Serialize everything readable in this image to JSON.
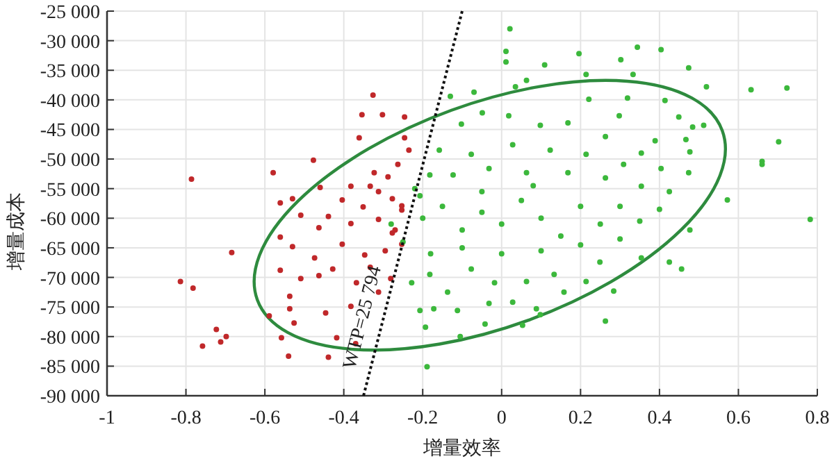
{
  "chart_data": {
    "type": "scatter",
    "xlabel": "增量效率",
    "ylabel": "增量成本",
    "xlim": [
      -1,
      0.8
    ],
    "xticks": [
      -1,
      -0.8,
      -0.6,
      -0.4,
      -0.2,
      0,
      0.2,
      0.4,
      0.6,
      0.8
    ],
    "ylim": [
      -90000,
      -25000
    ],
    "yticks": [
      {
        "value": -90000,
        "label": "-90 000"
      },
      {
        "value": -85000,
        "label": "-85 000"
      },
      {
        "value": -80000,
        "label": "-80 000"
      },
      {
        "value": -75000,
        "label": "-75 000"
      },
      {
        "value": -70000,
        "label": "-70 000"
      },
      {
        "value": -65000,
        "label": "-65 000"
      },
      {
        "value": -60000,
        "label": "-60 000"
      },
      {
        "value": -55000,
        "label": "-55 000"
      },
      {
        "value": -50000,
        "label": "-50 000"
      },
      {
        "value": -45000,
        "label": "-45 000"
      },
      {
        "value": -40000,
        "label": "-40 000"
      },
      {
        "value": -35000,
        "label": "-35 000"
      },
      {
        "value": -30000,
        "label": "-30 000"
      },
      {
        "value": -25000,
        "label": "-25 000"
      }
    ],
    "grid": true,
    "marker": "circle",
    "series": [
      {
        "type": "scatter",
        "color": "#c0282a",
        "x": [
          -0.786,
          -0.579,
          -0.477,
          -0.561,
          -0.53,
          -0.46,
          -0.326,
          -0.354,
          -0.302,
          -0.246,
          -0.361,
          -0.246,
          -0.323,
          -0.288,
          -0.382,
          -0.333,
          -0.263,
          -0.235,
          -0.312,
          -0.277,
          -0.404,
          -0.439,
          -0.509,
          -0.351,
          -0.253,
          -0.312,
          -0.382,
          -0.463,
          -0.684,
          -0.814,
          -0.782,
          -0.723,
          -0.758,
          -0.712,
          -0.698,
          -0.589,
          -0.561,
          -0.53,
          -0.561,
          -0.537,
          -0.537,
          -0.526,
          -0.558,
          -0.54,
          -0.439,
          -0.446,
          -0.509,
          -0.474,
          -0.428,
          -0.404,
          -0.368,
          -0.347,
          -0.382,
          -0.463,
          -0.418,
          -0.295,
          -0.333,
          -0.312,
          -0.37,
          -0.277,
          -0.253,
          -0.281,
          -0.253,
          -0.27
        ],
        "values": [
          -53400,
          -52300,
          -50200,
          -57400,
          -56700,
          -54800,
          -39200,
          -42500,
          -42500,
          -42900,
          -46400,
          -46400,
          -52300,
          -53000,
          -54600,
          -54600,
          -50900,
          -48500,
          -55500,
          -56700,
          -56900,
          -59700,
          -59500,
          -58100,
          -57900,
          -60200,
          -60900,
          -61600,
          -65800,
          -70700,
          -71800,
          -78800,
          -81600,
          -80900,
          -80000,
          -76500,
          -63200,
          -64800,
          -68800,
          -73200,
          -75300,
          -77700,
          -80200,
          -83300,
          -83500,
          -76000,
          -70200,
          -66700,
          -68600,
          -64400,
          -70900,
          -66200,
          -74900,
          -69700,
          -80200,
          -65500,
          -68300,
          -72500,
          -81200,
          -62500,
          -64400,
          -70200,
          -58600,
          -62000
        ]
      },
      {
        "type": "scatter",
        "color": "#3cb83c",
        "x": [
          0.021,
          0.011,
          0.011,
          0.196,
          0.302,
          0.344,
          0.404,
          0.474,
          0.519,
          0.632,
          0.723,
          0.702,
          0.66,
          0.66,
          0.572,
          0.782,
          0.109,
          0.214,
          0.333,
          -0.07,
          -0.13,
          0.035,
          0.063,
          0.221,
          0.319,
          0.414,
          0.449,
          0.484,
          0.512,
          0.467,
          0.477,
          0.389,
          0.354,
          0.263,
          0.298,
          0.168,
          0.098,
          0.018,
          -0.049,
          -0.102,
          -0.158,
          -0.182,
          -0.077,
          0.028,
          0.123,
          0.214,
          0.309,
          0.404,
          0.474,
          0.425,
          0.354,
          0.263,
          0.168,
          0.063,
          -0.032,
          -0.123,
          -0.207,
          -0.189,
          -0.105,
          -0.042,
          0.053,
          0.263,
          0.284,
          0.214,
          0.158,
          0.098,
          0.088,
          0.028,
          -0.032,
          -0.112,
          -0.193,
          -0.207,
          -0.172,
          -0.137,
          -0.018,
          0.063,
          0.133,
          0.249,
          0.354,
          0.425,
          0.456,
          0.477,
          -0.077,
          -0.182,
          -0.228,
          -0.2,
          -0.15,
          -0.1,
          -0.05,
          0,
          0.05,
          0.1,
          0.15,
          0.2,
          0.25,
          -0.25,
          -0.18,
          -0.1,
          0,
          0.1,
          0.2,
          0.3,
          0.35,
          -0.22,
          -0.05,
          0.08,
          0.3,
          -0.28,
          0.4
        ],
        "values": [
          -28000,
          -31800,
          -33600,
          -32200,
          -33200,
          -31100,
          -31500,
          -34600,
          -37800,
          -38300,
          -38000,
          -47100,
          -50400,
          -50900,
          -56900,
          -60200,
          -34100,
          -35700,
          -35700,
          -38700,
          -39400,
          -37800,
          -36700,
          -39900,
          -39700,
          -40100,
          -42900,
          -44600,
          -44300,
          -46700,
          -48800,
          -46900,
          -49000,
          -46200,
          -42700,
          -43900,
          -44300,
          -42700,
          -42200,
          -44100,
          -48500,
          -52700,
          -49200,
          -47600,
          -48500,
          -49200,
          -50900,
          -51600,
          -52300,
          -55500,
          -54600,
          -53200,
          -52300,
          -52300,
          -51600,
          -52700,
          -56200,
          -85100,
          -80000,
          -77900,
          -78100,
          -77400,
          -72300,
          -70700,
          -72500,
          -76300,
          -75300,
          -74200,
          -74400,
          -75600,
          -78400,
          -75600,
          -75300,
          -72500,
          -70900,
          -70700,
          -69500,
          -67400,
          -66700,
          -67400,
          -68600,
          -62000,
          -68600,
          -69500,
          -70900,
          -60000,
          -58000,
          -62000,
          -59000,
          -61000,
          -57000,
          -60000,
          -63000,
          -58000,
          -61000,
          -64000,
          -66000,
          -65000,
          -66000,
          -65500,
          -64500,
          -58000,
          -60500,
          -55000,
          -55500,
          -54500,
          -63500,
          -61000,
          -58500
        ]
      },
      {
        "type": "line",
        "marker": "none",
        "color": "#111111",
        "line_style": "dotted",
        "x": [
          -0.35,
          -0.1
        ],
        "values": [
          -90000,
          -25000
        ]
      }
    ],
    "annotations": [
      "WTP=25 794"
    ]
  }
}
